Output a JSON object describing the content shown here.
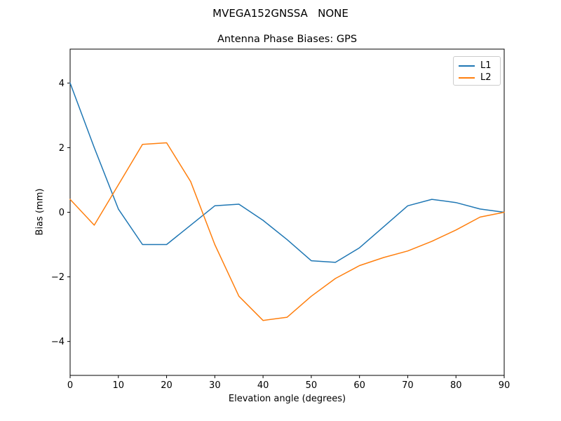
{
  "figure": {
    "title": "MVEGA152GNSSA   NONE",
    "subtitle": "Antenna Phase Biases: GPS"
  },
  "chart_data": {
    "type": "line",
    "title": "MVEGA152GNSSA   NONE",
    "subtitle": "Antenna Phase Biases: GPS",
    "xlabel": "Elevation angle (degrees)",
    "ylabel": "Bias (mm)",
    "xlim": [
      0,
      90
    ],
    "ylim": [
      -5.05,
      5.05
    ],
    "x_ticks": [
      0,
      10,
      20,
      30,
      40,
      50,
      60,
      70,
      80,
      90
    ],
    "y_ticks": [
      -4,
      -2,
      0,
      2,
      4
    ],
    "grid": false,
    "legend_position": "upper right",
    "x": [
      0,
      5,
      10,
      15,
      20,
      25,
      30,
      35,
      40,
      45,
      50,
      55,
      60,
      65,
      70,
      75,
      80,
      85,
      90
    ],
    "series": [
      {
        "name": "L1",
        "color": "#1f77b4",
        "values": [
          4.0,
          2.0,
          0.1,
          -1.0,
          -1.0,
          -0.4,
          0.2,
          0.25,
          -0.25,
          -0.85,
          -1.5,
          -1.55,
          -1.1,
          -0.45,
          0.2,
          0.4,
          0.3,
          0.1,
          0.0
        ]
      },
      {
        "name": "L2",
        "color": "#ff7f0e",
        "values": [
          0.4,
          -0.4,
          0.85,
          2.1,
          2.15,
          0.95,
          -1.0,
          -2.6,
          -3.35,
          -3.25,
          -2.6,
          -2.05,
          -1.65,
          -1.4,
          -1.2,
          -0.9,
          -0.55,
          -0.15,
          0.0
        ]
      }
    ]
  }
}
